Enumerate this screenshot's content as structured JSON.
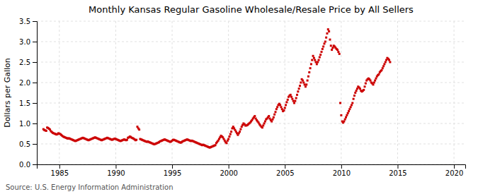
{
  "chart_data": {
    "type": "scatter",
    "title": "Monthly Kansas Regular Gasoline Wholesale/Resale Price by All Sellers",
    "ylabel": "Dollars per Gallon",
    "annotations": [
      "Source: U.S. Energy Information Administration"
    ],
    "color": "#cc0000",
    "marker": "square",
    "grid": true,
    "xlim": [
      1983.0,
      2021.0
    ],
    "ylim": [
      0.0,
      3.5
    ],
    "xticks": [
      1985,
      1990,
      1995,
      2000,
      2005,
      2010,
      2015,
      2020
    ],
    "yticks": [
      {
        "value": 0.0,
        "label": "0.0"
      },
      0.5,
      {
        "value": 1.0,
        "label": "1.0"
      },
      1.5,
      {
        "value": 2.0,
        "label": "2.0"
      },
      2.5,
      {
        "value": 3.0,
        "label": "3.0"
      },
      3.5
    ],
    "x": [
      1983.5833,
      1983.6667,
      1983.75,
      1983.8333,
      1983.9167,
      1984,
      1984.0833,
      1984.1667,
      1984.25,
      1984.3333,
      1984.4167,
      1984.5,
      1984.5833,
      1984.6667,
      1984.75,
      1984.8333,
      1984.9167,
      1985,
      1985.0833,
      1985.1667,
      1985.25,
      1985.3333,
      1985.4167,
      1985.5,
      1985.5833,
      1985.6667,
      1985.75,
      1985.8333,
      1985.9167,
      1986,
      1986.0833,
      1986.1667,
      1986.25,
      1986.3333,
      1986.4167,
      1986.5,
      1986.5833,
      1986.6667,
      1986.75,
      1986.8333,
      1986.9167,
      1987,
      1987.0833,
      1987.1667,
      1987.25,
      1987.3333,
      1987.4167,
      1987.5,
      1987.5833,
      1987.6667,
      1987.75,
      1987.8333,
      1987.9167,
      1988,
      1988.0833,
      1988.1667,
      1988.25,
      1988.3333,
      1988.4167,
      1988.5,
      1988.5833,
      1988.6667,
      1988.75,
      1988.8333,
      1988.9167,
      1989,
      1989.0833,
      1989.1667,
      1989.25,
      1989.3333,
      1989.4167,
      1989.5,
      1989.5833,
      1989.6667,
      1989.75,
      1989.8333,
      1989.9167,
      1990,
      1990.0833,
      1990.1667,
      1990.25,
      1990.3333,
      1990.4167,
      1990.5,
      1990.5833,
      1990.6667,
      1990.75,
      1990.8333,
      1990.9167,
      1991,
      1991.0833,
      1991.1667,
      1991.25,
      1991.3333,
      1991.4167,
      1991.5,
      1991.5833,
      1991.6667,
      1991.75,
      1991.8333,
      1991.9167,
      1992,
      1992.0833,
      1992.1667,
      1992.25,
      1992.3333,
      1992.4167,
      1992.5,
      1992.5833,
      1992.6667,
      1992.75,
      1992.8333,
      1992.9167,
      1993,
      1993.0833,
      1993.1667,
      1993.25,
      1993.3333,
      1993.4167,
      1993.5,
      1993.5833,
      1993.6667,
      1993.75,
      1993.8333,
      1993.9167,
      1994,
      1994.0833,
      1994.1667,
      1994.25,
      1994.3333,
      1994.4167,
      1994.5,
      1994.5833,
      1994.6667,
      1994.75,
      1994.8333,
      1994.9167,
      1995,
      1995.0833,
      1995.1667,
      1995.25,
      1995.3333,
      1995.4167,
      1995.5,
      1995.5833,
      1995.6667,
      1995.75,
      1995.8333,
      1995.9167,
      1996,
      1996.0833,
      1996.1667,
      1996.25,
      1996.3333,
      1996.4167,
      1996.5,
      1996.5833,
      1996.6667,
      1996.75,
      1996.8333,
      1996.9167,
      1997,
      1997.0833,
      1997.1667,
      1997.25,
      1997.3333,
      1997.4167,
      1997.5,
      1997.5833,
      1997.6667,
      1997.75,
      1997.8333,
      1997.9167,
      1998,
      1998.0833,
      1998.1667,
      1998.25,
      1998.3333,
      1998.4167,
      1998.5,
      1998.5833,
      1998.6667,
      1998.75,
      1998.8333,
      1998.9167,
      1999,
      1999.0833,
      1999.1667,
      1999.25,
      1999.3333,
      1999.4167,
      1999.5,
      1999.5833,
      1999.6667,
      1999.75,
      1999.8333,
      1999.9167,
      2000,
      2000.0833,
      2000.1667,
      2000.25,
      2000.3333,
      2000.4167,
      2000.5,
      2000.5833,
      2000.6667,
      2000.75,
      2000.8333,
      2000.9167,
      2001,
      2001.0833,
      2001.1667,
      2001.25,
      2001.3333,
      2001.4167,
      2001.5,
      2001.5833,
      2001.6667,
      2001.75,
      2001.8333,
      2001.9167,
      2002,
      2002.0833,
      2002.1667,
      2002.25,
      2002.3333,
      2002.4167,
      2002.5,
      2002.5833,
      2002.6667,
      2002.75,
      2002.8333,
      2002.9167,
      2003,
      2003.0833,
      2003.1667,
      2003.25,
      2003.3333,
      2003.4167,
      2003.5,
      2003.5833,
      2003.6667,
      2003.75,
      2003.8333,
      2003.9167,
      2004,
      2004.0833,
      2004.1667,
      2004.25,
      2004.3333,
      2004.4167,
      2004.5,
      2004.5833,
      2004.6667,
      2004.75,
      2004.8333,
      2004.9167,
      2005,
      2005.0833,
      2005.1667,
      2005.25,
      2005.3333,
      2005.4167,
      2005.5,
      2005.5833,
      2005.6667,
      2005.75,
      2005.8333,
      2005.9167,
      2006,
      2006.0833,
      2006.1667,
      2006.25,
      2006.3333,
      2006.4167,
      2006.5,
      2006.5833,
      2006.6667,
      2006.75,
      2006.8333,
      2006.9167,
      2007,
      2007.0833,
      2007.1667,
      2007.25,
      2007.3333,
      2007.4167,
      2007.5,
      2007.5833,
      2007.6667,
      2007.75,
      2007.8333,
      2007.9167,
      2008,
      2008.0833,
      2008.1667,
      2008.25,
      2008.3333,
      2008.4167,
      2008.5,
      2008.5833,
      2008.6667,
      2008.75,
      2008.8333,
      2008.9167,
      2009,
      2009.0833,
      2009.1667,
      2009.25,
      2009.3333,
      2009.4167,
      2009.5,
      2009.5833,
      2009.6667,
      2009.75,
      2009.8333,
      2009.9167,
      2010,
      2010.0833,
      2010.1667,
      2010.25,
      2010.3333,
      2010.4167,
      2010.5,
      2010.5833,
      2010.6667,
      2010.75,
      2010.8333,
      2010.9167,
      2011,
      2011.0833,
      2011.1667,
      2011.25,
      2011.3333,
      2011.4167,
      2011.5,
      2011.5833,
      2011.6667,
      2011.75,
      2011.8333,
      2011.9167,
      2012,
      2012.0833,
      2012.1667,
      2012.25,
      2012.3333,
      2012.4167,
      2012.5,
      2012.5833,
      2012.6667,
      2012.75,
      2012.8333,
      2012.9167,
      2013,
      2013.0833,
      2013.1667,
      2013.25,
      2013.3333,
      2013.4167,
      2013.5,
      2013.5833,
      2013.6667,
      2013.75,
      2013.8333,
      2013.9167,
      2014,
      2014.0833,
      2014.1667,
      2014.25,
      2014.3333
    ],
    "values": [
      0.86,
      0.84,
      0.83,
      0.82,
      0.9,
      0.89,
      0.87,
      0.85,
      0.81,
      0.79,
      0.77,
      0.76,
      0.75,
      0.74,
      0.73,
      0.74,
      0.76,
      0.75,
      0.74,
      0.72,
      0.7,
      0.68,
      0.67,
      0.66,
      0.65,
      0.64,
      0.63,
      0.64,
      0.63,
      0.62,
      0.61,
      0.6,
      0.59,
      0.58,
      0.57,
      0.58,
      0.59,
      0.6,
      0.61,
      0.62,
      0.63,
      0.64,
      0.65,
      0.64,
      0.63,
      0.62,
      0.61,
      0.6,
      0.59,
      0.6,
      0.61,
      0.62,
      0.63,
      0.64,
      0.65,
      0.66,
      0.65,
      0.64,
      0.63,
      0.62,
      0.61,
      0.6,
      0.59,
      0.6,
      0.61,
      0.62,
      0.63,
      0.64,
      0.65,
      0.64,
      0.63,
      0.62,
      0.61,
      0.6,
      0.61,
      0.62,
      0.63,
      0.62,
      0.61,
      0.6,
      0.59,
      0.58,
      0.57,
      0.58,
      0.59,
      0.6,
      0.61,
      0.6,
      0.59,
      0.6,
      0.65,
      0.66,
      0.68,
      0.67,
      0.65,
      0.64,
      0.63,
      0.61,
      0.59,
      0.6,
      0.92,
      0.88,
      0.85,
      0.62,
      0.61,
      0.6,
      0.59,
      0.58,
      0.57,
      0.56,
      0.55,
      0.56,
      0.55,
      0.54,
      0.53,
      0.52,
      0.51,
      0.5,
      0.49,
      0.5,
      0.51,
      0.52,
      0.53,
      0.54,
      0.56,
      0.57,
      0.58,
      0.59,
      0.6,
      0.61,
      0.6,
      0.59,
      0.58,
      0.57,
      0.56,
      0.55,
      0.56,
      0.58,
      0.6,
      0.6,
      0.59,
      0.58,
      0.57,
      0.56,
      0.55,
      0.54,
      0.53,
      0.54,
      0.56,
      0.57,
      0.58,
      0.59,
      0.6,
      0.61,
      0.6,
      0.59,
      0.58,
      0.57,
      0.58,
      0.57,
      0.56,
      0.55,
      0.54,
      0.53,
      0.52,
      0.51,
      0.5,
      0.49,
      0.48,
      0.47,
      0.48,
      0.47,
      0.46,
      0.45,
      0.44,
      0.43,
      0.42,
      0.41,
      0.42,
      0.43,
      0.44,
      0.45,
      0.46,
      0.47,
      0.52,
      0.55,
      0.58,
      0.62,
      0.66,
      0.7,
      0.68,
      0.66,
      0.62,
      0.58,
      0.54,
      0.52,
      0.58,
      0.62,
      0.68,
      0.74,
      0.8,
      0.88,
      0.92,
      0.88,
      0.84,
      0.8,
      0.76,
      0.72,
      0.76,
      0.8,
      0.86,
      0.92,
      0.96,
      1.0,
      0.98,
      0.95,
      0.95,
      0.96,
      0.98,
      1.0,
      1.02,
      1.05,
      1.08,
      1.12,
      1.15,
      1.18,
      1.12,
      1.08,
      1.05,
      1.02,
      0.98,
      0.95,
      0.92,
      0.9,
      0.95,
      1.0,
      1.05,
      1.1,
      1.12,
      1.15,
      1.18,
      1.12,
      1.08,
      1.05,
      1.1,
      1.15,
      1.22,
      1.28,
      1.35,
      1.4,
      1.45,
      1.48,
      1.45,
      1.4,
      1.35,
      1.3,
      1.32,
      1.38,
      1.45,
      1.52,
      1.58,
      1.65,
      1.68,
      1.7,
      1.65,
      1.6,
      1.55,
      1.5,
      1.55,
      1.62,
      1.7,
      1.78,
      1.85,
      1.92,
      2.0,
      2.08,
      2.05,
      2.0,
      1.95,
      1.9,
      1.95,
      2.05,
      2.15,
      2.25,
      2.35,
      2.45,
      2.55,
      2.65,
      2.6,
      2.55,
      2.5,
      2.45,
      2.5,
      2.55,
      2.62,
      2.68,
      2.75,
      2.82,
      2.88,
      2.95,
      3.0,
      3.1,
      3.2,
      3.3,
      3.25,
      3.05,
      2.9,
      2.8,
      2.85,
      2.9,
      2.88,
      2.85,
      2.82,
      2.8,
      2.75,
      2.7,
      1.5,
      1.2,
      1.05,
      1.02,
      1.05,
      1.1,
      1.15,
      1.2,
      1.25,
      1.3,
      1.35,
      1.4,
      1.45,
      1.5,
      1.6,
      1.68,
      1.75,
      1.8,
      1.85,
      1.9,
      1.88,
      1.85,
      1.8,
      1.78,
      1.8,
      1.82,
      1.9,
      1.98,
      2.05,
      2.08,
      2.1,
      2.08,
      2.05,
      2.0,
      1.98,
      1.95,
      2.0,
      2.05,
      2.1,
      2.15,
      2.18,
      2.2,
      2.25,
      2.28,
      2.3,
      2.35,
      2.4,
      2.45,
      2.5,
      2.55,
      2.6,
      2.58,
      2.55,
      2.5
    ]
  }
}
